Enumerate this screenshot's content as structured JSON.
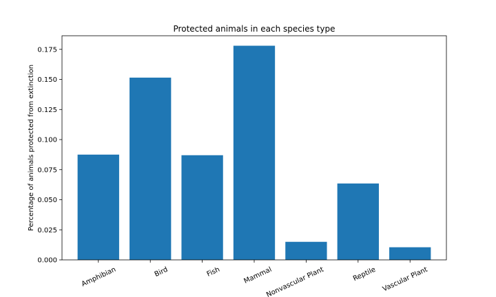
{
  "chart_data": {
    "type": "bar",
    "title": "Protected animals in each species type",
    "xlabel": "",
    "ylabel": "Percentage of animals protected from extinction",
    "categories": [
      "Amphibian",
      "Bird",
      "Fish",
      "Mammal",
      "Nonvascular Plant",
      "Reptile",
      "Vascular Plant"
    ],
    "values": [
      0.0875,
      0.1515,
      0.087,
      0.178,
      0.015,
      0.0635,
      0.0105
    ],
    "ylim": [
      0,
      0.1863
    ],
    "yticks": [
      0.0,
      0.025,
      0.05,
      0.075,
      0.1,
      0.125,
      0.15,
      0.175
    ],
    "ytick_labels": [
      "0.000",
      "0.025",
      "0.050",
      "0.075",
      "0.100",
      "0.125",
      "0.150",
      "0.175"
    ],
    "bar_color": "#1f77b4",
    "grid": false,
    "legend": "none"
  }
}
